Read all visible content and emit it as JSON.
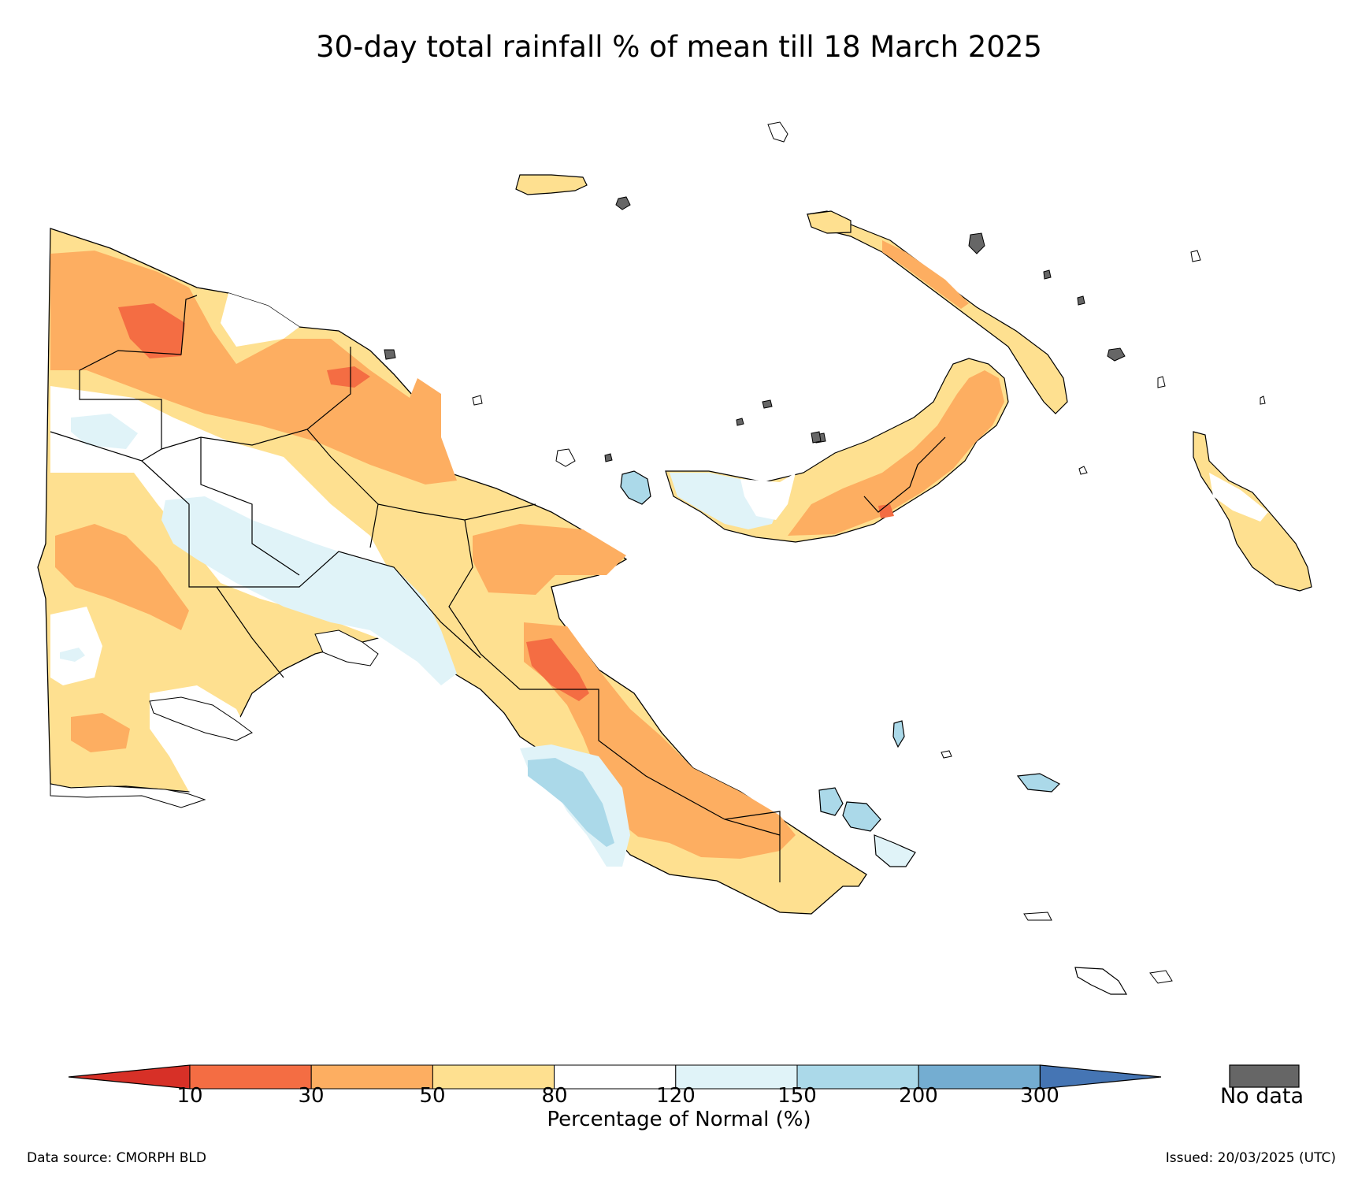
{
  "title": "30-day total rainfall % of mean till 18 March 2025",
  "colorbar": {
    "label": "Percentage of Normal (%)",
    "ticks": [
      "10",
      "30",
      "50",
      "80",
      "120",
      "150",
      "200",
      "300"
    ],
    "colors": [
      "#d73027",
      "#f46d43",
      "#fdae61",
      "#fee090",
      "#ffffff",
      "#e0f3f8",
      "#abd9e9",
      "#74add1",
      "#4575b4"
    ],
    "no_data_label": "No data",
    "no_data_color": "#666666"
  },
  "footer": {
    "source": "Data source: CMORPH BLD",
    "issued": "Issued: 20/03/2025 (UTC)"
  }
}
